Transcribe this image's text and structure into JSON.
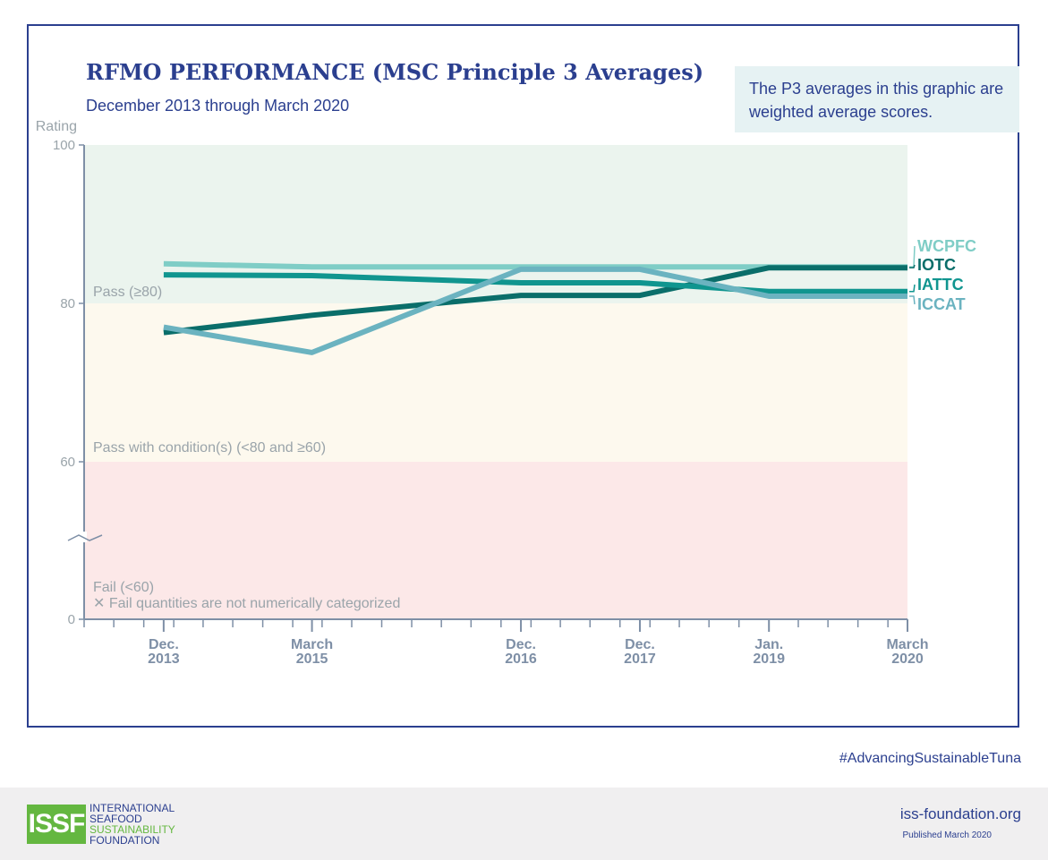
{
  "title": "RFMO PERFORMANCE (MSC Principle 3 Averages)",
  "subtitle": "December 2013 through March 2020",
  "note": "The P3 averages in this graphic are weighted average scores.",
  "hashtag": "#AdvancingSustainableTuna",
  "footer": {
    "logo_mark": "ISSF",
    "logo_lines": [
      "INTERNATIONAL",
      "SEAFOOD",
      "SUSTAINABILITY",
      "FOUNDATION"
    ],
    "website": "iss-foundation.org",
    "published": "Published March 2020"
  },
  "chart_data": {
    "type": "line",
    "ylabel": "Rating",
    "y_ticks": [
      "0",
      "60",
      "80",
      "100"
    ],
    "y_axis_note": "axis broken between 0 and 60",
    "x_dates": [
      "2013-12",
      "2015-03",
      "2016-12",
      "2017-12",
      "2019-01",
      "2020-03"
    ],
    "x_tick_labels": [
      {
        "top": "Dec.",
        "bottom": "2013"
      },
      {
        "top": "March",
        "bottom": "2015"
      },
      {
        "top": "Dec.",
        "bottom": "2016"
      },
      {
        "top": "Dec.",
        "bottom": "2017"
      },
      {
        "top": "Jan.",
        "bottom": "2019"
      },
      {
        "top": "March",
        "bottom": "2020"
      }
    ],
    "bands": [
      {
        "label": "Pass (≥80)",
        "from": 80,
        "to": 100,
        "color": "#ebf4ee"
      },
      {
        "label": "Pass with condition(s) (<80 and ≥60)",
        "from": 60,
        "to": 80,
        "color": "#fdf9ee"
      },
      {
        "label": "Fail (<60)",
        "from": 0,
        "to": 60,
        "color": "#fce8e8"
      }
    ],
    "fail_note": "Fail quantities are not numerically categorized",
    "series": [
      {
        "name": "WCPFC",
        "color": "#7fcdc6",
        "values": [
          85.0,
          84.6,
          84.6,
          84.6,
          84.6,
          84.6
        ]
      },
      {
        "name": "IOTC",
        "color": "#0a6e6a",
        "values": [
          76.3,
          78.5,
          81.0,
          81.0,
          84.5,
          84.5
        ]
      },
      {
        "name": "IATTC",
        "color": "#10958f",
        "values": [
          83.6,
          83.5,
          82.6,
          82.6,
          81.5,
          81.5
        ]
      },
      {
        "name": "ICCAT",
        "color": "#6bb3c0",
        "values": [
          77.0,
          73.8,
          84.3,
          84.3,
          80.9,
          80.9
        ]
      }
    ]
  }
}
